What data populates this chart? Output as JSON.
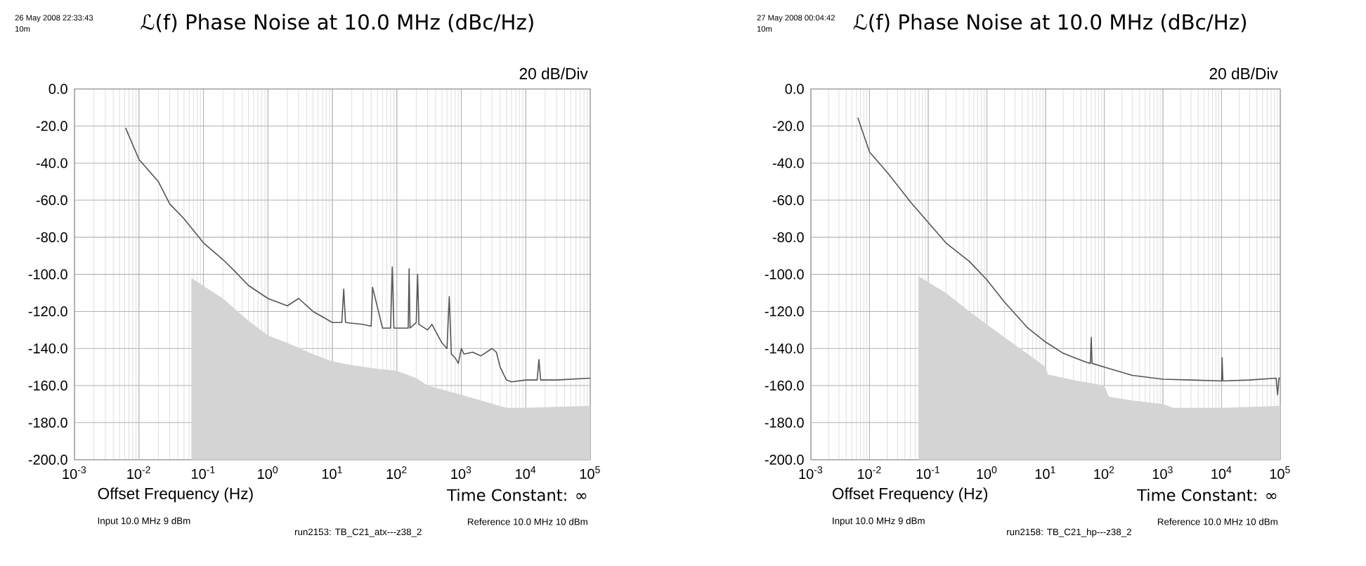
{
  "chart_data": [
    {
      "type": "line",
      "title": "ℒ(f) Phase Noise at 10.0 MHz (dBc/Hz)",
      "subtitle": "20 dB/Div",
      "xlabel": "Offset Frequency (Hz)",
      "annotations": [
        "26 May 2008 22:33:43",
        "10m",
        "Time Constant: ∞",
        "Input 10.0 MHz 9 dBm",
        "Reference 10.0 MHz 10 dBm",
        "run2153: TB_C21_atx---z38_2"
      ],
      "log": "x",
      "grid": true,
      "xlim": [
        0.001,
        100000
      ],
      "ylim": [
        -200,
        0
      ],
      "xticks": [
        {
          "value": 0.001,
          "label": "10$^{-3}$"
        },
        {
          "value": 0.01,
          "label": "10$^{-2}$"
        },
        {
          "value": 0.1,
          "label": "10$^{-1}$"
        },
        {
          "value": 1,
          "label": "10$^{0}$"
        },
        {
          "value": 10,
          "label": "10$^{1}$"
        },
        {
          "value": 100,
          "label": "10$^{2}$"
        },
        {
          "value": 1000,
          "label": "10$^{3}$"
        },
        {
          "value": 10000,
          "label": "10$^{4}$"
        },
        {
          "value": 100000,
          "label": "10$^{5}$"
        }
      ],
      "yticks": [
        {
          "value": 0,
          "label": "0.0"
        },
        {
          "value": -20,
          "label": "-20.0"
        },
        {
          "value": -40,
          "label": "-40.0"
        },
        {
          "value": -60,
          "label": "-60.0"
        },
        {
          "value": -80,
          "label": "-80.0"
        },
        {
          "value": -100,
          "label": "-100.0"
        },
        {
          "value": -120,
          "label": "-120.0"
        },
        {
          "value": -140,
          "label": "-140.0"
        },
        {
          "value": -160,
          "label": "-160.0"
        },
        {
          "value": -180,
          "label": "-180.0"
        },
        {
          "value": -200,
          "label": "-200.0"
        }
      ],
      "series": [
        {
          "type": "area",
          "color": "#d4d4d4",
          "x": [
            0.065,
            0.065,
            0.2,
            0.5,
            1,
            2,
            5,
            10,
            20,
            50,
            100,
            200,
            300,
            1000,
            2000,
            5000,
            10000,
            100000,
            100000
          ],
          "values": [
            -200,
            -102,
            -113,
            -125,
            -133,
            -137,
            -143,
            -147,
            -149,
            -151,
            -152,
            -156,
            -160,
            -165,
            -168,
            -172,
            -172,
            -171,
            -200
          ]
        },
        {
          "color": "#555555",
          "x": [
            0.0062,
            0.01,
            0.02,
            0.03,
            0.05,
            0.1,
            0.2,
            0.3,
            0.5,
            1,
            2,
            3,
            5,
            10,
            14,
            15,
            16,
            30,
            40,
            42,
            60,
            80,
            85,
            90,
            120,
            150,
            155,
            160,
            200,
            210,
            220,
            300,
            350,
            500,
            600,
            650,
            700,
            800,
            900,
            1000,
            1100,
            1500,
            2000,
            3000,
            3500,
            4000,
            5000,
            6000,
            10000,
            15000,
            16000,
            17000,
            30000,
            100000
          ],
          "values": [
            -21,
            -38,
            -50,
            -62,
            -70,
            -83,
            -92,
            -98,
            -106,
            -113,
            -117,
            -113,
            -120,
            -126,
            -126,
            -108,
            -126,
            -127,
            -128,
            -107,
            -129,
            -129,
            -96,
            -129,
            -129,
            -129,
            -97,
            -129,
            -126,
            -100,
            -127,
            -130,
            -127,
            -137,
            -140,
            -112,
            -143,
            -145,
            -148,
            -140,
            -143,
            -142,
            -144,
            -140,
            -142,
            -150,
            -157,
            -158,
            -157,
            -157,
            -146,
            -157,
            -157,
            -156
          ]
        }
      ]
    },
    {
      "type": "line",
      "title": "ℒ(f) Phase Noise at 10.0 MHz (dBc/Hz)",
      "subtitle": "20 dB/Div",
      "xlabel": "Offset Frequency (Hz)",
      "annotations": [
        "27 May 2008 00:04:42",
        "10m",
        "Time Constant: ∞",
        "Input 10.0 MHz 9 dBm",
        "Reference 10.0 MHz 10 dBm",
        "run2158: TB_C21_hp---z38_2"
      ],
      "log": "x",
      "grid": true,
      "xlim": [
        0.001,
        100000
      ],
      "ylim": [
        -200,
        0
      ],
      "xticks": [
        {
          "value": 0.001,
          "label": "10$^{-3}$"
        },
        {
          "value": 0.01,
          "label": "10$^{-2}$"
        },
        {
          "value": 0.1,
          "label": "10$^{-1}$"
        },
        {
          "value": 1,
          "label": "10$^{0}$"
        },
        {
          "value": 10,
          "label": "10$^{1}$"
        },
        {
          "value": 100,
          "label": "10$^{2}$"
        },
        {
          "value": 1000,
          "label": "10$^{3}$"
        },
        {
          "value": 10000,
          "label": "10$^{4}$"
        },
        {
          "value": 100000,
          "label": "10$^{5}$"
        }
      ],
      "yticks": [
        {
          "value": 0,
          "label": "0.0"
        },
        {
          "value": -20,
          "label": "-20.0"
        },
        {
          "value": -40,
          "label": "-40.0"
        },
        {
          "value": -60,
          "label": "-60.0"
        },
        {
          "value": -80,
          "label": "-80.0"
        },
        {
          "value": -100,
          "label": "-100.0"
        },
        {
          "value": -120,
          "label": "-120.0"
        },
        {
          "value": -140,
          "label": "-140.0"
        },
        {
          "value": -160,
          "label": "-160.0"
        },
        {
          "value": -180,
          "label": "-180.0"
        },
        {
          "value": -200,
          "label": "-200.0"
        }
      ],
      "series": [
        {
          "type": "area",
          "color": "#d4d4d4",
          "x": [
            0.068,
            0.068,
            0.2,
            0.5,
            1,
            2,
            5,
            10,
            11,
            30,
            100,
            120,
            300,
            1000,
            1500,
            10000,
            100000,
            100000
          ],
          "values": [
            -200,
            -101,
            -110,
            -120,
            -127,
            -134,
            -143,
            -150,
            -154,
            -157,
            -160,
            -166,
            -168,
            -170,
            -172,
            -172,
            -171,
            -200
          ]
        },
        {
          "color": "#555555",
          "x": [
            0.0063,
            0.01,
            0.02,
            0.05,
            0.1,
            0.2,
            0.5,
            1,
            2,
            5,
            10,
            20,
            50,
            58,
            60,
            62,
            100,
            300,
            1000,
            3000,
            10000,
            10200,
            10500,
            30000,
            85000,
            90000,
            95000,
            100000
          ],
          "values": [
            -15.5,
            -34,
            -45,
            -61,
            -72,
            -83,
            -93,
            -103,
            -115,
            -129,
            -136.5,
            -142.6,
            -147.5,
            -148,
            -134,
            -148,
            -150,
            -154.5,
            -156.6,
            -157,
            -157.5,
            -145,
            -157.5,
            -157,
            -156,
            -165,
            -156,
            -156
          ]
        }
      ]
    }
  ]
}
